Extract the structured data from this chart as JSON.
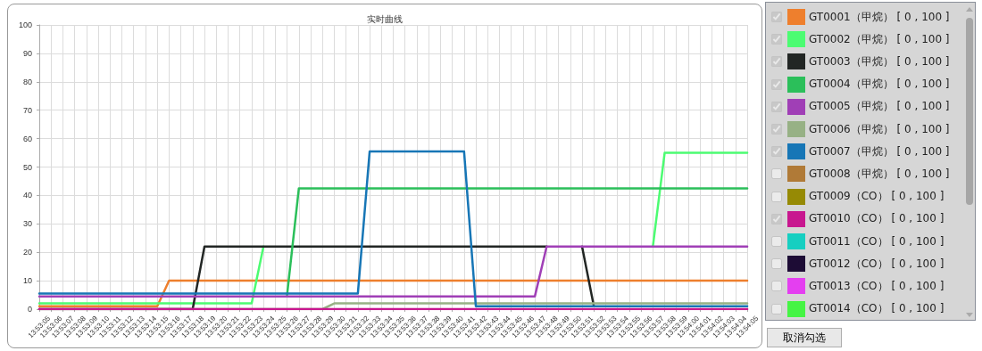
{
  "chart_data": {
    "type": "line",
    "title": "实时曲线",
    "categories": [
      "13:53:05",
      "13:53:06",
      "13:53:07",
      "13:53:08",
      "13:53:09",
      "13:53:10",
      "13:53:11",
      "13:53:12",
      "13:53:13",
      "13:53:14",
      "13:53:15",
      "13:53:16",
      "13:53:17",
      "13:53:18",
      "13:53:19",
      "13:53:20",
      "13:53:21",
      "13:53:22",
      "13:53:23",
      "13:53:24",
      "13:53:25",
      "13:53:26",
      "13:53:27",
      "13:53:28",
      "13:53:29",
      "13:53:30",
      "13:53:31",
      "13:53:32",
      "13:53:33",
      "13:53:34",
      "13:53:35",
      "13:53:36",
      "13:53:37",
      "13:53:38",
      "13:53:39",
      "13:53:40",
      "13:53:41",
      "13:53:42",
      "13:53:43",
      "13:53:44",
      "13:53:45",
      "13:53:46",
      "13:53:47",
      "13:53:48",
      "13:53:49",
      "13:53:50",
      "13:53:51",
      "13:53:52",
      "13:53:53",
      "13:53:54",
      "13:53:55",
      "13:53:56",
      "13:53:57",
      "13:53:58",
      "13:53:59",
      "13:54:00",
      "13:54:01",
      "13:54:02",
      "13:54:03",
      "13:54:04",
      "13:54:05"
    ],
    "series": [
      {
        "name": "GT0001（甲烷） [ 0 , 100 ]",
        "color": "#ee7f2d",
        "values": [
          1,
          1,
          1,
          1,
          1,
          1,
          1,
          1,
          1,
          1,
          1,
          10,
          10,
          10,
          10,
          10,
          10,
          10,
          10,
          10,
          10,
          10,
          10,
          10,
          10,
          10,
          10,
          10,
          10,
          10,
          10,
          10,
          10,
          10,
          10,
          10,
          10,
          10,
          10,
          10,
          10,
          10,
          10,
          10,
          10,
          10,
          10,
          10,
          10,
          10,
          10,
          10,
          10,
          10,
          10,
          10,
          10,
          10,
          10,
          10,
          10
        ]
      },
      {
        "name": "GT0002（甲烷） [ 0 , 100 ]",
        "color": "#4cfc72",
        "values": [
          2,
          2,
          2,
          2,
          2,
          2,
          2,
          2,
          2,
          2,
          2,
          2,
          2,
          2,
          2,
          2,
          2,
          2,
          2,
          22,
          null,
          null,
          null,
          null,
          null,
          null,
          null,
          null,
          null,
          null,
          null,
          null,
          null,
          null,
          null,
          null,
          null,
          null,
          null,
          null,
          null,
          null,
          null,
          null,
          null,
          null,
          null,
          null,
          null,
          null,
          null,
          null,
          22,
          55,
          55,
          55,
          55,
          55,
          55,
          55,
          55
        ]
      },
      {
        "name": "GT0003（甲烷） [ 0 , 100 ]",
        "color": "#222624",
        "values": [
          0,
          0,
          0,
          0,
          0,
          0,
          0,
          0,
          0,
          0,
          0,
          0,
          0,
          0,
          22,
          22,
          22,
          22,
          22,
          22,
          22,
          22,
          22,
          22,
          22,
          22,
          22,
          22,
          22,
          22,
          22,
          22,
          22,
          22,
          22,
          22,
          22,
          22,
          22,
          22,
          22,
          22,
          22,
          22,
          null,
          null,
          22,
          1,
          null,
          null,
          null,
          null,
          null,
          null,
          null,
          null,
          null,
          null,
          null,
          null,
          null
        ]
      },
      {
        "name": "GT0004（甲烷） [ 0 , 100 ]",
        "color": "#2bbf5a",
        "values": [
          null,
          null,
          null,
          null,
          null,
          null,
          null,
          null,
          null,
          null,
          null,
          null,
          null,
          null,
          null,
          null,
          null,
          null,
          null,
          null,
          null,
          5,
          42.5,
          42.5,
          42.5,
          42.5,
          42.5,
          42.5,
          42.5,
          42.5,
          42.5,
          42.5,
          42.5,
          42.5,
          42.5,
          42.5,
          42.5,
          42.5,
          42.5,
          42.5,
          42.5,
          42.5,
          42.5,
          42.5,
          42.5,
          42.5,
          42.5,
          42.5,
          42.5,
          42.5,
          42.5,
          42.5,
          42.5,
          42.5,
          42.5,
          42.5,
          42.5,
          42.5,
          42.5,
          42.5,
          42.5
        ]
      },
      {
        "name": "GT0005（甲烷） [ 0 , 100 ]",
        "color": "#a03fb6",
        "values": [
          4.5,
          4.5,
          4.5,
          4.5,
          4.5,
          4.5,
          4.5,
          4.5,
          4.5,
          4.5,
          4.5,
          4.5,
          4.5,
          4.5,
          4.5,
          4.5,
          4.5,
          4.5,
          4.5,
          4.5,
          4.5,
          4.5,
          4.5,
          4.5,
          4.5,
          4.5,
          4.5,
          4.5,
          4.5,
          4.5,
          4.5,
          4.5,
          4.5,
          4.5,
          4.5,
          4.5,
          4.5,
          4.5,
          4.5,
          4.5,
          4.5,
          4.5,
          4.5,
          22,
          22,
          22,
          22,
          22,
          22,
          22,
          22,
          22,
          22,
          22,
          22,
          22,
          22,
          22,
          22,
          22,
          22
        ]
      },
      {
        "name": "GT0006（甲烷） [ 0 , 100 ]",
        "color": "#97b185",
        "values": [
          0,
          0,
          0,
          0,
          0,
          0,
          0,
          0,
          0,
          0,
          0,
          0,
          0,
          0,
          0,
          0,
          0,
          0,
          0,
          0,
          0,
          0,
          0,
          0,
          0,
          2,
          2,
          2,
          2,
          2,
          2,
          2,
          2,
          2,
          2,
          2,
          2,
          2,
          2,
          2,
          2,
          2,
          2,
          2,
          2,
          2,
          2,
          2,
          2,
          2,
          2,
          2,
          2,
          2,
          2,
          2,
          2,
          2,
          2,
          2,
          2
        ]
      },
      {
        "name": "GT0007（甲烷） [ 0 , 100 ]",
        "color": "#1776b6",
        "values": [
          5.5,
          5.5,
          5.5,
          5.5,
          5.5,
          5.5,
          5.5,
          5.5,
          5.5,
          5.5,
          5.5,
          5.5,
          5.5,
          5.5,
          5.5,
          5.5,
          5.5,
          5.5,
          5.5,
          5.5,
          5.5,
          5.5,
          5.5,
          5.5,
          5.5,
          5.5,
          5.5,
          5.5,
          55.5,
          55.5,
          55.5,
          55.5,
          55.5,
          55.5,
          55.5,
          55.5,
          55.5,
          1,
          1,
          1,
          1,
          1,
          1,
          1,
          1,
          1,
          1,
          1,
          1,
          1,
          1,
          1,
          1,
          1,
          1,
          1,
          1,
          1,
          1,
          1,
          1
        ]
      },
      {
        "name": "GT0008（甲烷） [ 0 , 100 ]",
        "color": "#b07a37",
        "values": [
          null,
          null,
          null,
          null,
          null,
          null,
          null,
          null,
          null,
          null,
          null,
          null,
          null,
          null,
          null,
          null,
          null,
          null,
          null,
          null,
          null,
          null,
          null,
          null,
          null,
          null,
          null,
          null,
          null,
          null,
          null,
          null,
          null,
          null,
          null,
          null,
          null,
          null,
          null,
          null,
          null,
          null,
          null,
          null,
          null,
          null,
          null,
          null,
          null,
          null,
          null,
          null,
          null,
          null,
          null,
          null,
          null,
          null,
          null,
          null,
          null
        ]
      },
      {
        "name": "GT0009（CO） [ 0 , 100 ]",
        "color": "#968a05",
        "values": [
          null,
          null,
          null,
          null,
          null,
          null,
          null,
          null,
          null,
          null,
          null,
          null,
          null,
          null,
          null,
          null,
          null,
          null,
          null,
          null,
          null,
          null,
          null,
          null,
          null,
          null,
          null,
          null,
          null,
          null,
          null,
          null,
          null,
          null,
          null,
          null,
          null,
          null,
          null,
          null,
          null,
          null,
          null,
          null,
          null,
          null,
          null,
          null,
          null,
          null,
          null,
          null,
          null,
          null,
          null,
          null,
          null,
          null,
          null,
          null,
          null
        ]
      },
      {
        "name": "GT0010（CO） [ 0 , 100 ]",
        "color": "#c8178f",
        "values": [
          0,
          0,
          0,
          0,
          0,
          0,
          0,
          0,
          0,
          0,
          0,
          0,
          0,
          0,
          0,
          0,
          0,
          0,
          0,
          0,
          0,
          0,
          0,
          0,
          0,
          0,
          0,
          0,
          0,
          0,
          0,
          0,
          0,
          0,
          0,
          0,
          0,
          0,
          0,
          0,
          0,
          0,
          0,
          0,
          0,
          0,
          0,
          0,
          0,
          0,
          0,
          0,
          0,
          0,
          0,
          0,
          0,
          0,
          0,
          0,
          0
        ]
      },
      {
        "name": "GT0011（CO） [ 0 , 100 ]",
        "color": "#16cfc1",
        "values": [
          null,
          null,
          null,
          null,
          null,
          null,
          null,
          null,
          null,
          null,
          null,
          null,
          null,
          null,
          null,
          null,
          null,
          null,
          null,
          null,
          null,
          null,
          null,
          null,
          null,
          null,
          null,
          null,
          null,
          null,
          null,
          null,
          null,
          null,
          null,
          null,
          null,
          null,
          null,
          null,
          null,
          null,
          null,
          null,
          null,
          null,
          null,
          null,
          null,
          null,
          null,
          null,
          null,
          null,
          null,
          null,
          null,
          null,
          null,
          null,
          null
        ]
      },
      {
        "name": "GT0012（CO） [ 0 , 100 ]",
        "color": "#1d0c35",
        "values": [
          null,
          null,
          null,
          null,
          null,
          null,
          null,
          null,
          null,
          null,
          null,
          null,
          null,
          null,
          null,
          null,
          null,
          null,
          null,
          null,
          null,
          null,
          null,
          null,
          null,
          null,
          null,
          null,
          null,
          null,
          null,
          null,
          null,
          null,
          null,
          null,
          null,
          null,
          null,
          null,
          null,
          null,
          null,
          null,
          null,
          null,
          null,
          null,
          null,
          null,
          null,
          null,
          null,
          null,
          null,
          null,
          null,
          null,
          null,
          null,
          null
        ]
      },
      {
        "name": "GT0013（CO） [ 0 , 100 ]",
        "color": "#e43ff0",
        "values": [
          null,
          null,
          null,
          null,
          null,
          null,
          null,
          null,
          null,
          null,
          null,
          null,
          null,
          null,
          null,
          null,
          null,
          null,
          null,
          null,
          null,
          null,
          null,
          null,
          null,
          null,
          null,
          null,
          null,
          null,
          null,
          null,
          null,
          null,
          null,
          null,
          null,
          null,
          null,
          null,
          null,
          null,
          null,
          null,
          null,
          null,
          null,
          null,
          null,
          null,
          null,
          null,
          null,
          null,
          null,
          null,
          null,
          null,
          null,
          null,
          null
        ]
      },
      {
        "name": "GT0014（CO） [ 0 , 100 ]",
        "color": "#45f444",
        "values": [
          null,
          null,
          null,
          null,
          null,
          null,
          null,
          null,
          null,
          null,
          null,
          null,
          null,
          null,
          null,
          null,
          null,
          null,
          null,
          null,
          null,
          null,
          null,
          null,
          null,
          null,
          null,
          null,
          null,
          null,
          null,
          null,
          null,
          null,
          null,
          null,
          null,
          null,
          null,
          null,
          null,
          null,
          null,
          null,
          null,
          null,
          null,
          null,
          null,
          null,
          null,
          null,
          null,
          null,
          null,
          null,
          null,
          null,
          null,
          null,
          null
        ]
      }
    ],
    "ylim": [
      0,
      100
    ],
    "yticks": [
      0,
      10,
      20,
      30,
      40,
      50,
      60,
      70,
      80,
      90,
      100
    ],
    "grid": true,
    "legend": "right",
    "marker": "none",
    "line_style": "solid",
    "annotations": [
      "取消勾选"
    ]
  }
}
